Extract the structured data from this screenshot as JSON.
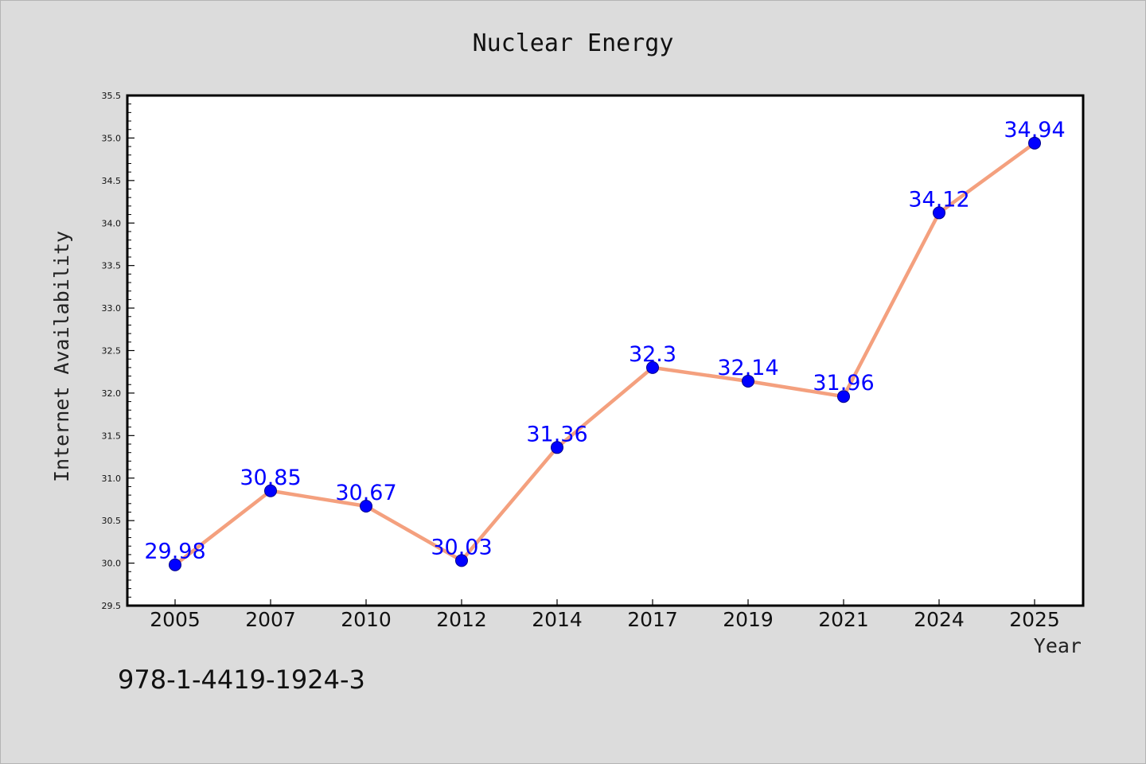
{
  "chart_data": {
    "type": "line",
    "title": "Nuclear Energy",
    "xlabel": "Year",
    "ylabel": "Internet Availability",
    "categories": [
      "2005",
      "2007",
      "2010",
      "2012",
      "2014",
      "2017",
      "2019",
      "2021",
      "2024",
      "2025"
    ],
    "series": [
      {
        "values": [
          29.98,
          30.85,
          30.67,
          30.03,
          31.36,
          32.3,
          32.14,
          31.96,
          34.12,
          34.94
        ],
        "labels": [
          "29.98",
          "30.85",
          "30.67",
          "30.03",
          "31.36",
          "32.3",
          "32.14",
          "31.96",
          "34.12",
          "34.94"
        ],
        "line_color": "#f4a07e",
        "marker_color": "#0000ff"
      }
    ],
    "ylim": [
      29.5,
      35.5
    ],
    "yticks": [
      "29.5",
      "30.0",
      "30.5",
      "31.0",
      "31.5",
      "32.0",
      "32.5",
      "33.0",
      "33.5",
      "34.0",
      "34.5",
      "35.0",
      "35.5"
    ],
    "grid": false,
    "legend": "none"
  },
  "caption": "978-1-4419-1924-3",
  "colors": {
    "background": "#dcdcdc",
    "plot_background": "#ffffff",
    "line": "#f4a07e",
    "marker": "#0000ff",
    "data_label": "#0000ff"
  }
}
